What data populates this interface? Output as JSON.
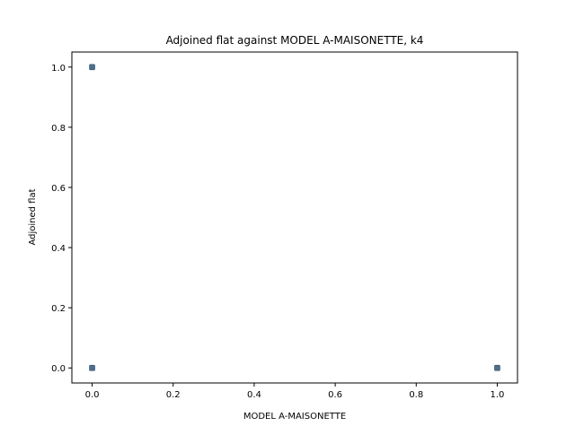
{
  "chart_data": {
    "type": "scatter",
    "title": "Adjoined flat against MODEL A-MAISONETTE, k4",
    "xlabel": "MODEL A-MAISONETTE",
    "ylabel": "Adjoined flat",
    "xlim": [
      -0.05,
      1.05
    ],
    "ylim": [
      -0.05,
      1.05
    ],
    "xticks": [
      "0.0",
      "0.2",
      "0.4",
      "0.6",
      "0.8",
      "1.0"
    ],
    "yticks": [
      "0.0",
      "0.2",
      "0.4",
      "0.6",
      "0.8",
      "1.0"
    ],
    "grid": false,
    "marker_color": "#3a5f80",
    "points": [
      {
        "x": 0.0,
        "y": 1.0
      },
      {
        "x": 0.0,
        "y": 0.0
      },
      {
        "x": 1.0,
        "y": 0.0
      }
    ]
  }
}
